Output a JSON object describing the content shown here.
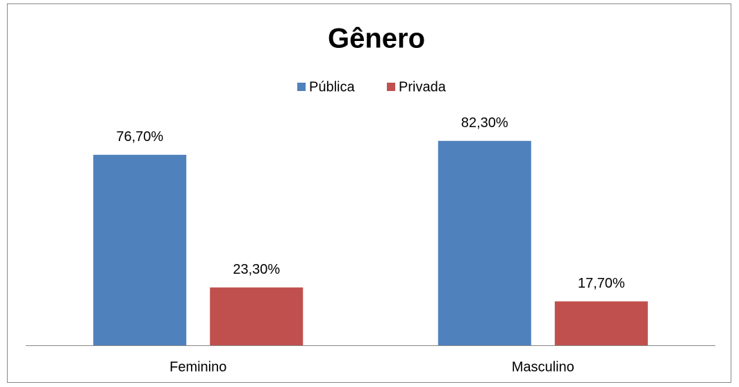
{
  "chart_data": {
    "type": "bar",
    "title": "Gênero",
    "categories": [
      "Feminino",
      "Masculino"
    ],
    "series": [
      {
        "name": "Pública",
        "color": "#4f81bd",
        "values": [
          76.7,
          82.3
        ],
        "value_labels": [
          "76,70%",
          "82,30%"
        ]
      },
      {
        "name": "Privada",
        "color": "#c0504d",
        "values": [
          23.3,
          17.7
        ],
        "value_labels": [
          "23,30%",
          "17,70%"
        ]
      }
    ],
    "legend": "top"
  }
}
